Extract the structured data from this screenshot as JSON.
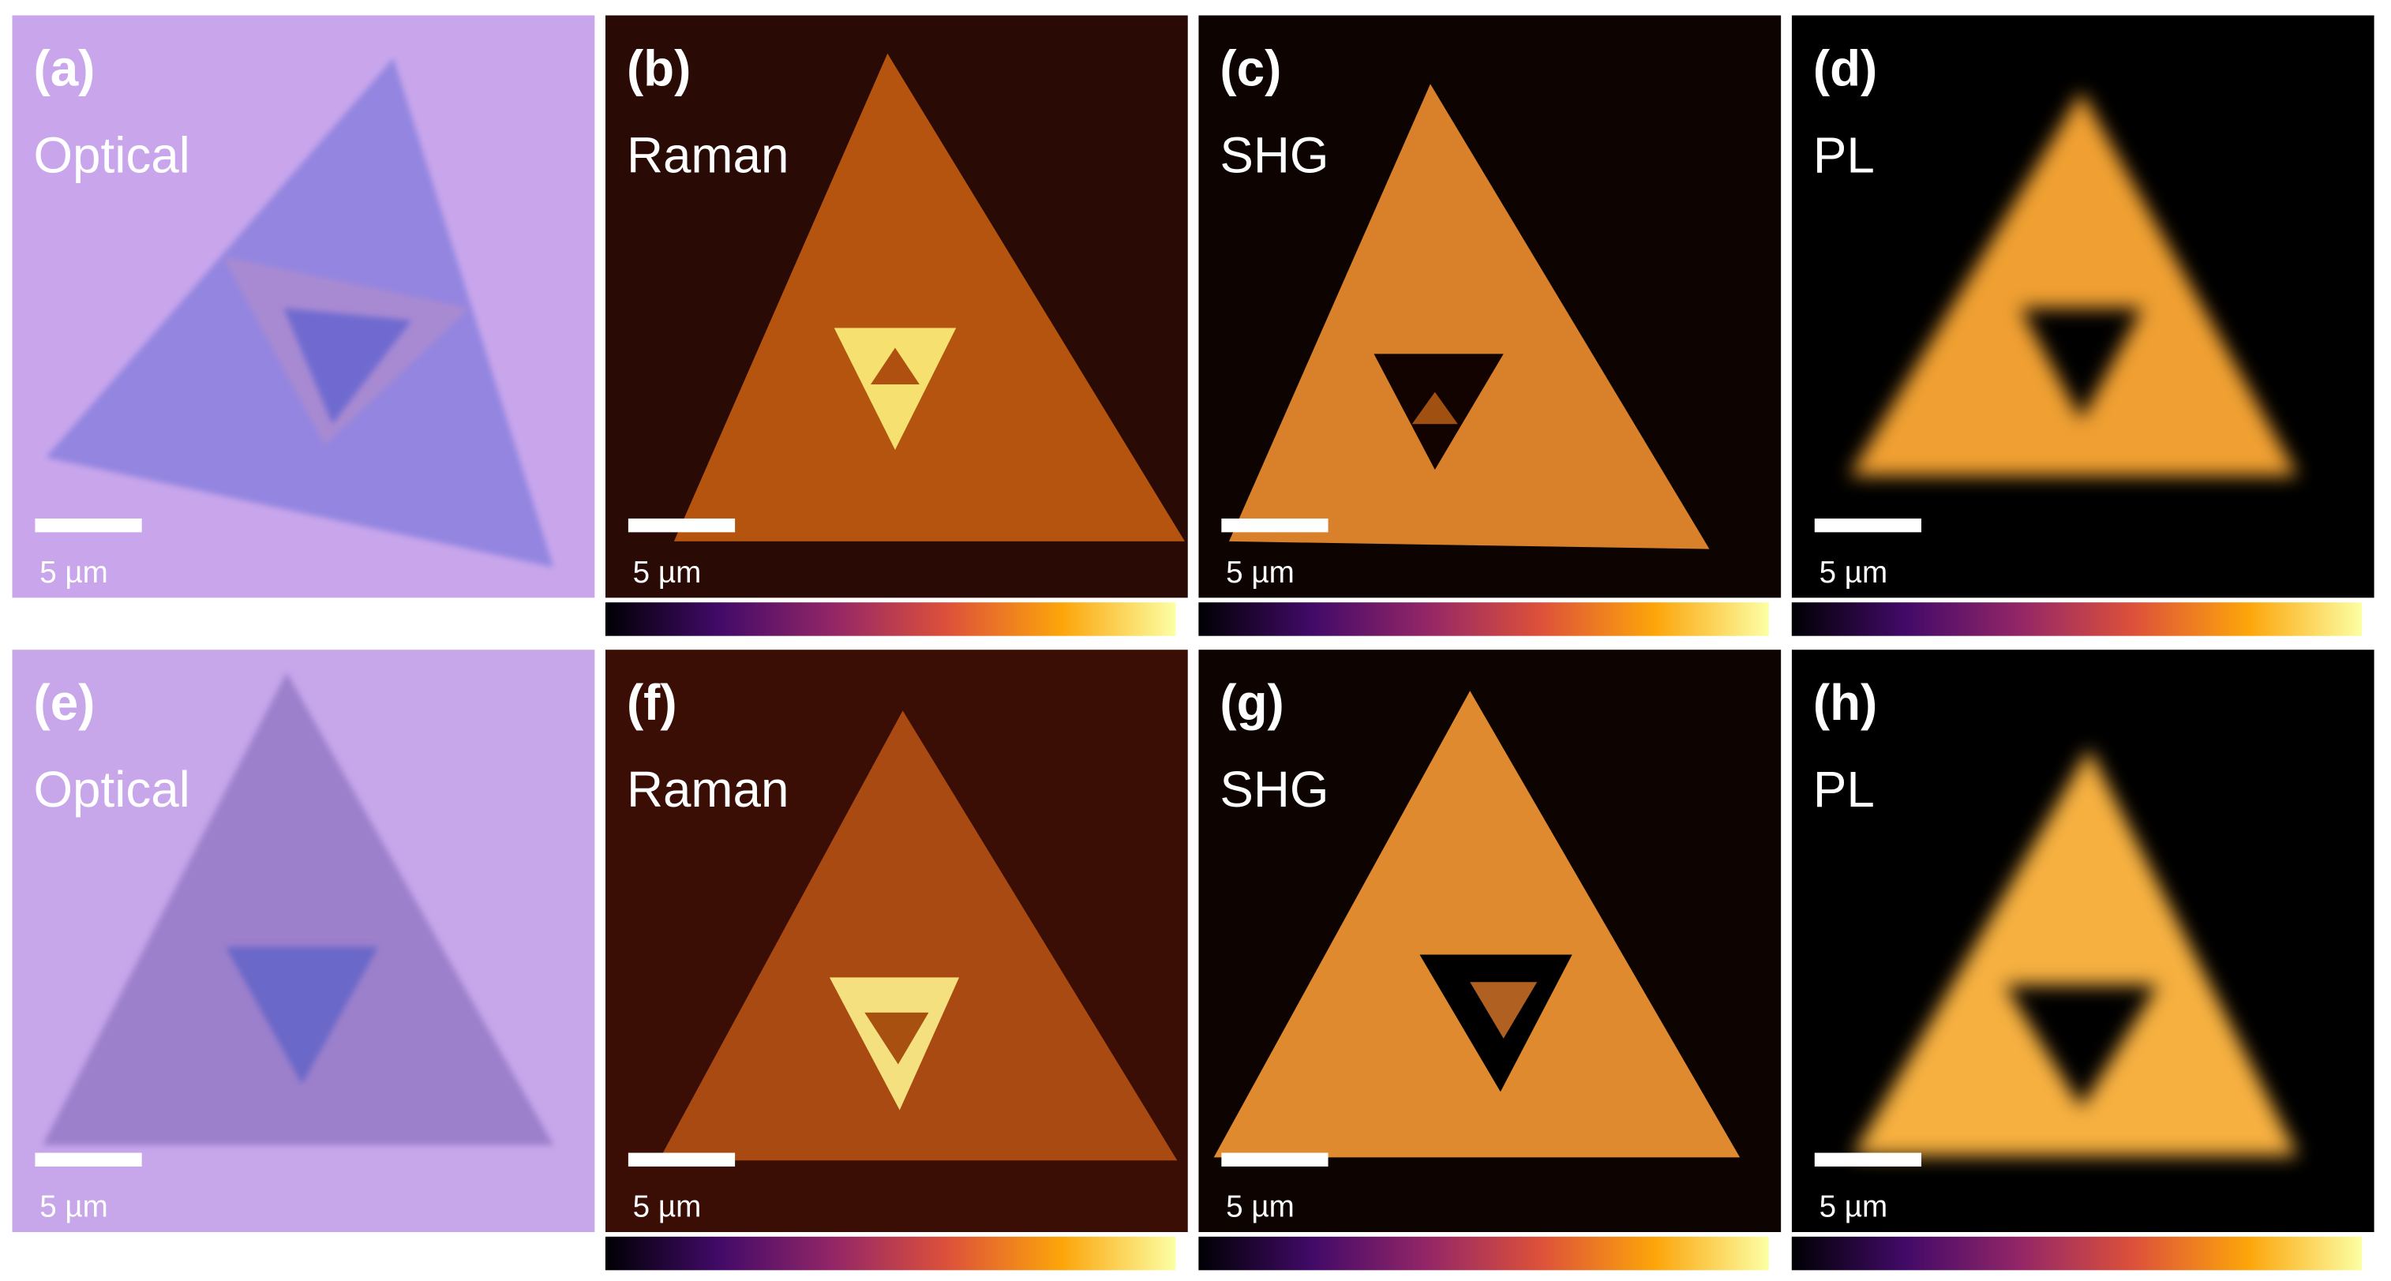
{
  "panels": [
    {
      "label": "(a)",
      "mode": "Optical",
      "scale_bar": "5 µm"
    },
    {
      "label": "(b)",
      "mode": "Raman",
      "scale_bar": "5 µm"
    },
    {
      "label": "(c)",
      "mode": "SHG",
      "scale_bar": "5 µm"
    },
    {
      "label": "(d)",
      "mode": "PL",
      "scale_bar": "5 µm"
    },
    {
      "label": "(e)",
      "mode": "Optical",
      "scale_bar": "5 µm"
    },
    {
      "label": "(f)",
      "mode": "Raman",
      "scale_bar": "5 µm"
    },
    {
      "label": "(g)",
      "mode": "SHG",
      "scale_bar": "5 µm"
    },
    {
      "label": "(h)",
      "mode": "PL",
      "scale_bar": "5 µm"
    }
  ]
}
